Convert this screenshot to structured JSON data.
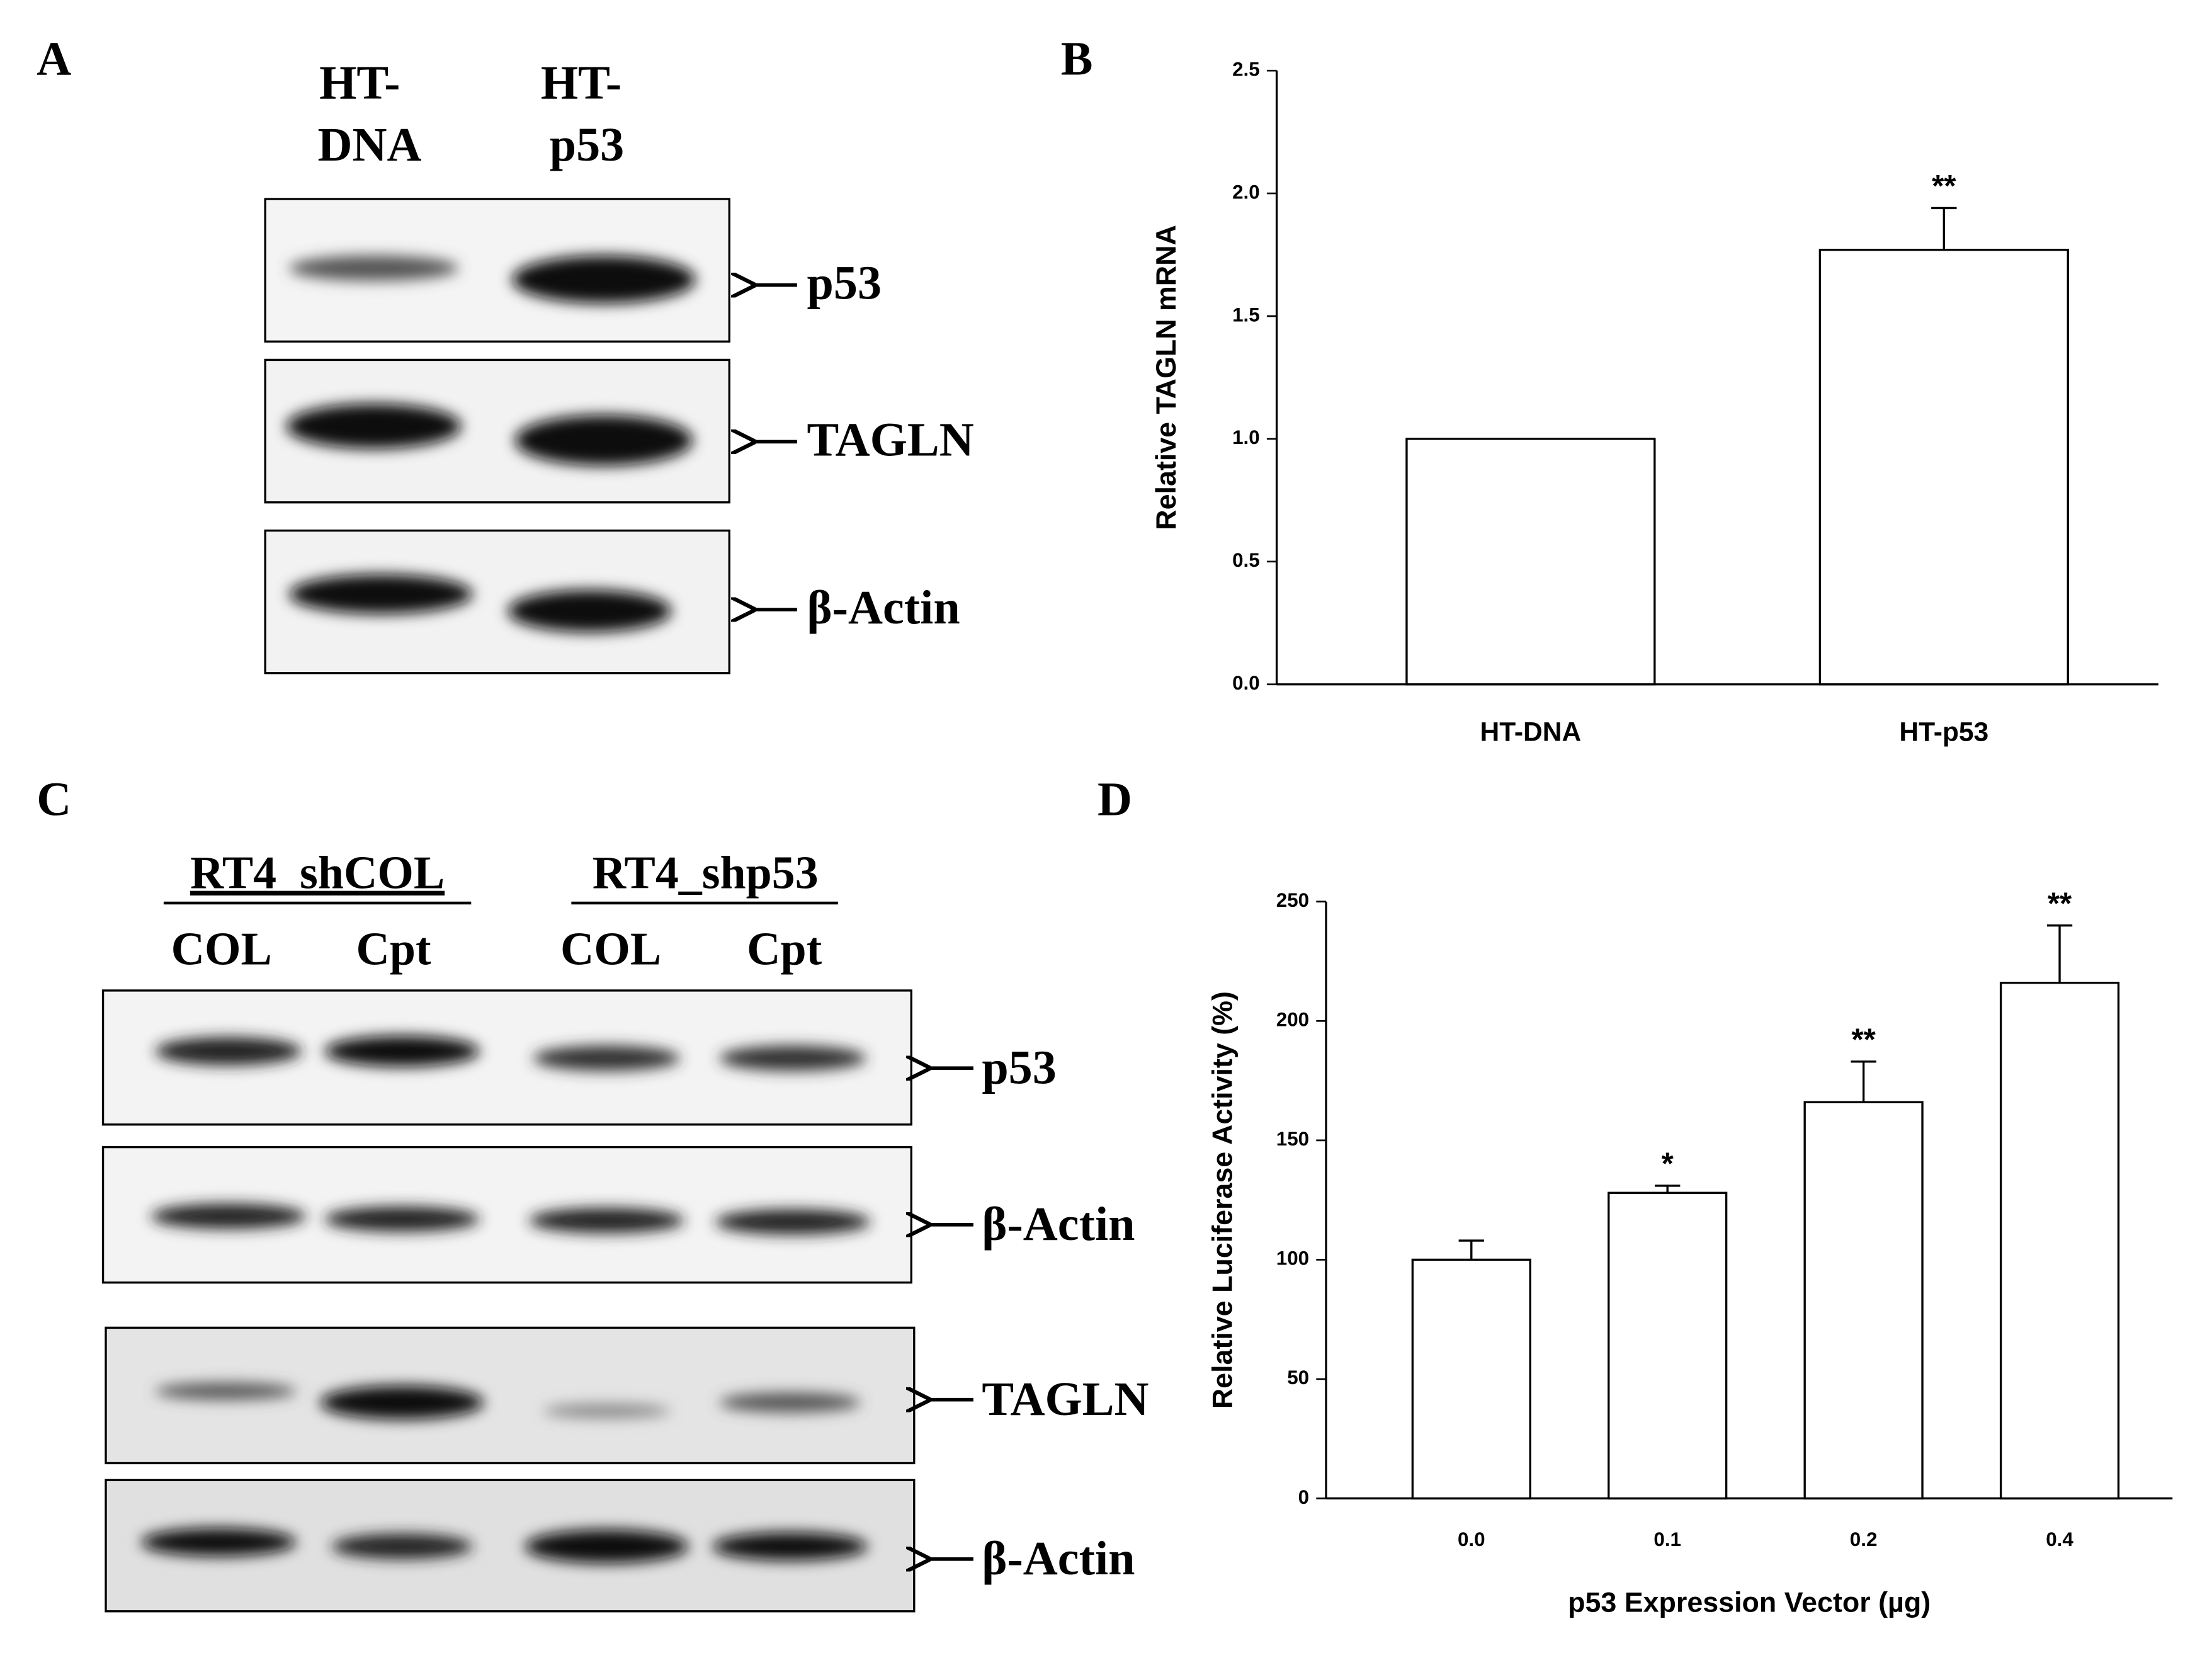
{
  "panels": {
    "a": "A",
    "b": "B",
    "c": "C",
    "d": "D"
  },
  "blot_a": {
    "lanes": [
      [
        "HT-",
        "DNA"
      ],
      [
        "HT-",
        "p53"
      ]
    ],
    "rows": [
      "p53",
      "TAGLN",
      "β-Actin"
    ]
  },
  "blot_c": {
    "groups": [
      "RT4_shCOL",
      "RT4_shp53"
    ],
    "lanes": [
      "COL",
      "Cpt",
      "COL",
      "Cpt"
    ],
    "rows": [
      "p53",
      "β-Actin",
      "TAGLN",
      "β-Actin"
    ]
  },
  "chart_data": [
    {
      "type": "bar",
      "ylabel": "Relative TAGLN mRNA",
      "categories": [
        "HT-DNA",
        "HT-p53"
      ],
      "values": [
        1.0,
        1.77
      ],
      "errors": [
        0,
        0.17
      ],
      "annotations": [
        null,
        "**"
      ],
      "color": "#ffffff",
      "ylim": [
        0,
        2.5
      ],
      "yticks": [
        {
          "value": 0,
          "label": "0.0"
        },
        {
          "value": 0.5,
          "label": "0.5"
        },
        {
          "value": 1,
          "label": "1.0"
        },
        {
          "value": 1.5,
          "label": "1.5"
        },
        {
          "value": 2,
          "label": "2.0"
        },
        {
          "value": 2.5,
          "label": "2.5"
        }
      ]
    },
    {
      "type": "bar",
      "ylabel": "Relative Luciferase Activity (%)",
      "xlabel": "p53 Expression Vector (µg)",
      "categories": [
        "0.0",
        "0.1",
        "0.2",
        "0.4"
      ],
      "values": [
        100,
        128,
        166,
        216
      ],
      "errors": [
        8,
        3,
        17,
        24
      ],
      "annotations": [
        null,
        "*",
        "**",
        "**"
      ],
      "color": "#ffffff",
      "ylim": [
        0,
        250
      ],
      "yticks": [
        0,
        50,
        100,
        150,
        200,
        250
      ]
    }
  ]
}
